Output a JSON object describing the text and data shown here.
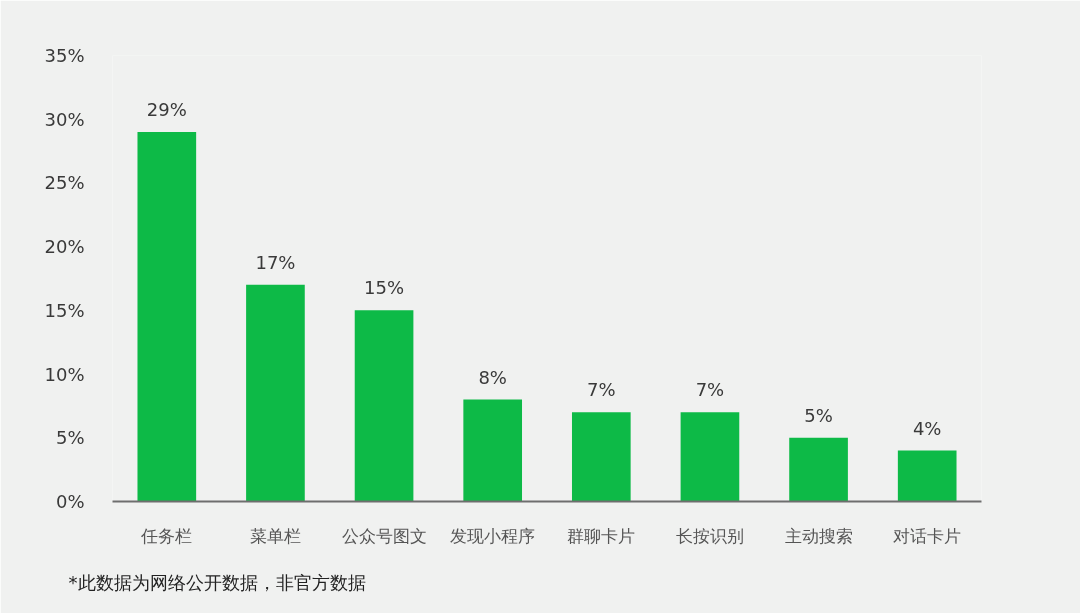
{
  "chart_data": {
    "type": "bar",
    "categories": [
      "任务栏",
      "菜单栏",
      "公众号图文",
      "发现小程序",
      "群聊卡片",
      "长按识别",
      "主动搜索",
      "对话卡片"
    ],
    "values": [
      29,
      17,
      15,
      8,
      7,
      7,
      5,
      4
    ],
    "color": "#0dba47",
    "value_labels": [
      "29%",
      "17%",
      "15%",
      "8%",
      "7%",
      "7%",
      "5%",
      "4%"
    ],
    "ylim": [
      0,
      35
    ],
    "yticks": [
      {
        "value": 0,
        "label": "0%"
      },
      {
        "value": 5,
        "label": "5%"
      },
      {
        "value": 10,
        "label": "10%"
      },
      {
        "value": 15,
        "label": "15%"
      },
      {
        "value": 20,
        "label": "20%"
      },
      {
        "value": 25,
        "label": "25%"
      },
      {
        "value": 30,
        "label": "30%"
      },
      {
        "value": 35,
        "label": "35%"
      }
    ],
    "grid": false,
    "annotations": [
      "*此数据为网络公开数据，非官方数据"
    ]
  }
}
